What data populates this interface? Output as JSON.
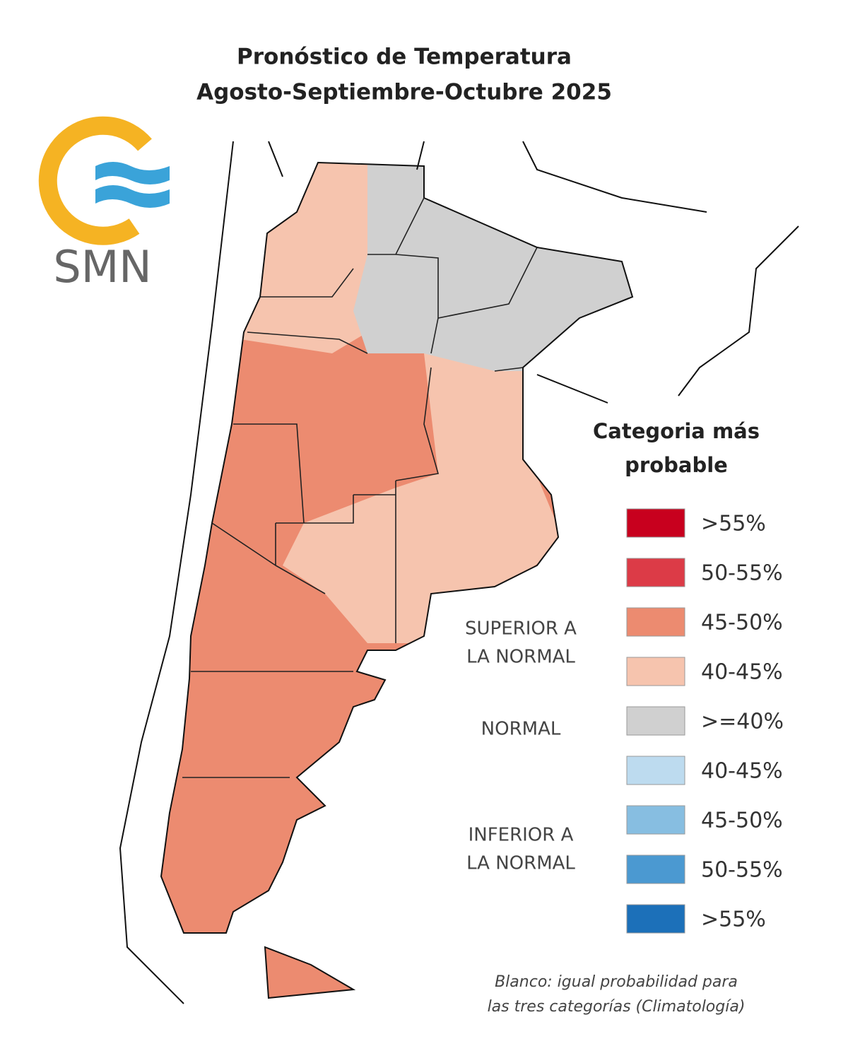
{
  "header": {
    "title": "Pronóstico de Temperatura",
    "subtitle": "Agosto-Septiembre-Octubre 2025"
  },
  "logo": {
    "text": "SMN"
  },
  "legend": {
    "title_lines": [
      "Categoria más",
      "probable"
    ],
    "items": [
      {
        "label": ">55%",
        "color": "#c8001e"
      },
      {
        "label": "50-55%",
        "color": "#dc3b47"
      },
      {
        "label": "45-50%",
        "color": "#ec8b70"
      },
      {
        "label": "40-45%",
        "color": "#f6c4ae"
      },
      {
        "label": ">=40%",
        "color": "#d0d0d0"
      },
      {
        "label": "40-45%",
        "color": "#bddbef"
      },
      {
        "label": "45-50%",
        "color": "#87bee1"
      },
      {
        "label": "50-55%",
        "color": "#4b99d1"
      },
      {
        "label": ">55%",
        "color": "#1c70b9"
      }
    ],
    "groups": [
      {
        "lines": [
          "SUPERIOR A",
          "LA NORMAL"
        ]
      },
      {
        "lines": [
          "NORMAL"
        ]
      },
      {
        "lines": [
          "INFERIOR A",
          "LA NORMAL"
        ]
      }
    ]
  },
  "footnote": {
    "lines": [
      "Blanco:  igual probabilidad para",
      "las tres categorías (Climatología)"
    ]
  }
}
